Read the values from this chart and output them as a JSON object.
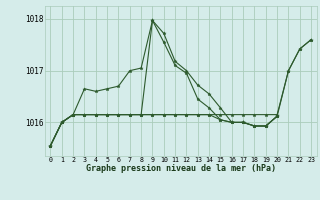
{
  "title": "Graphe pression niveau de la mer (hPa)",
  "bg_color": "#d5ecea",
  "grid_color": "#aaccbb",
  "line_color": "#2d5a2d",
  "ylim": [
    1015.35,
    1018.25
  ],
  "yticks": [
    1016,
    1017,
    1018
  ],
  "xticks": [
    0,
    1,
    2,
    3,
    4,
    5,
    6,
    7,
    8,
    9,
    10,
    11,
    12,
    13,
    14,
    15,
    16,
    17,
    18,
    19,
    20,
    21,
    22,
    23
  ],
  "series": [
    [
      1015.55,
      1016.0,
      1016.15,
      1016.65,
      1016.6,
      1016.65,
      1016.7,
      1017.0,
      1017.05,
      1017.97,
      1017.72,
      1017.18,
      1017.0,
      1016.72,
      1016.55,
      1016.28,
      1016.0,
      1016.0,
      1015.93,
      1015.93,
      1016.12,
      1017.0,
      1017.42,
      1017.6
    ],
    [
      1015.55,
      1016.0,
      1016.15,
      1016.15,
      1016.15,
      1016.15,
      1016.15,
      1016.15,
      1016.15,
      1017.97,
      1017.55,
      1017.1,
      1016.95,
      1016.45,
      1016.28,
      1016.05,
      1016.0,
      1016.0,
      1015.93,
      1015.93,
      1016.12,
      null,
      null,
      null
    ],
    [
      1015.55,
      1016.0,
      1016.15,
      1016.15,
      1016.15,
      1016.15,
      1016.15,
      1016.15,
      1016.15,
      1016.15,
      1016.15,
      1016.15,
      1016.15,
      1016.15,
      1016.15,
      1016.05,
      1016.0,
      1016.0,
      1015.93,
      1015.93,
      1016.12,
      null,
      null,
      null
    ],
    [
      1015.55,
      1016.0,
      1016.15,
      1016.15,
      1016.15,
      1016.15,
      1016.15,
      1016.15,
      1016.15,
      1016.15,
      1016.15,
      1016.15,
      1016.15,
      1016.15,
      1016.15,
      1016.15,
      1016.15,
      1016.15,
      1016.15,
      1016.15,
      1016.15,
      1017.0,
      1017.42,
      1017.6
    ]
  ]
}
